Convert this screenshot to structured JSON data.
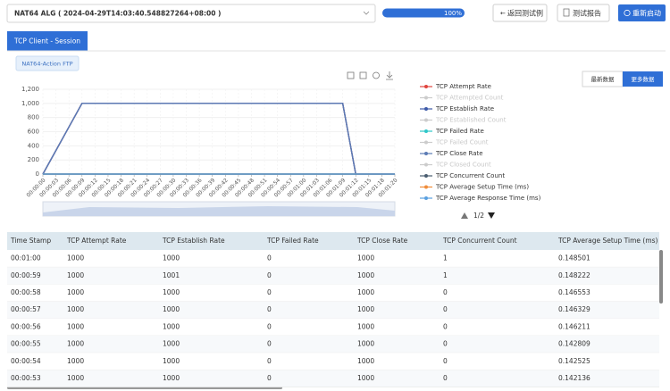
{
  "header": {
    "test_select": "NAT64 ALG ( 2024-04-29T14:03:40.548827264+08:00 )",
    "progress": {
      "value": 100,
      "label": "100%"
    },
    "buttons": [
      "返回测试例",
      "测试报告",
      "重新启动"
    ]
  },
  "tabs": [
    "TCP Client - Session"
  ],
  "filter_tag": "NAT64-Action FTP",
  "view_buttons": [
    "最新数据",
    "更多数据"
  ],
  "chart_data": {
    "type": "line",
    "categories": [
      "00:00:00",
      "00:00:03",
      "00:00:06",
      "00:00:09",
      "00:00:12",
      "00:00:15",
      "00:00:18",
      "00:00:21",
      "00:00:24",
      "00:00:27",
      "00:00:30",
      "00:00:33",
      "00:00:36",
      "00:00:39",
      "00:00:42",
      "00:00:45",
      "00:00:48",
      "00:00:51",
      "00:00:54",
      "00:00:57",
      "00:01:00",
      "00:01:03",
      "00:01:06",
      "00:01:09",
      "00:01:12",
      "00:01:15",
      "00:01:18",
      "00:01:20"
    ],
    "ylim": [
      0,
      1200
    ],
    "yticks": [
      0,
      200,
      400,
      600,
      800,
      {
        "value": 1000,
        "label": "1,000"
      },
      {
        "value": 1200,
        "label": "1,200"
      }
    ],
    "grid": true,
    "series": [
      {
        "name": "TCP Attempt Rate",
        "color": "#e0443e",
        "visible": true,
        "values": [
          0,
          333,
          667,
          1000,
          1000,
          1000,
          1000,
          1000,
          1000,
          1000,
          1000,
          1000,
          1000,
          1000,
          1000,
          1000,
          1000,
          1000,
          1000,
          1000,
          1000,
          1000,
          1000,
          1000,
          0,
          0,
          0,
          0
        ]
      },
      {
        "name": "TCP Attempted Count",
        "color": "#cccccc",
        "visible": false
      },
      {
        "name": "TCP Establish Rate",
        "color": "#3d5aa8",
        "visible": true,
        "values": [
          0,
          333,
          667,
          1000,
          1000,
          1000,
          1000,
          1000,
          1000,
          1000,
          1000,
          1000,
          1000,
          1000,
          1000,
          1000,
          1000,
          1000,
          1000,
          1000,
          1000,
          1000,
          1000,
          1000,
          0,
          0,
          0,
          0
        ]
      },
      {
        "name": "TCP Established Count",
        "color": "#cccccc",
        "visible": false
      },
      {
        "name": "TCP Failed Rate",
        "color": "#2ec7c9",
        "visible": true,
        "values": [
          0,
          0,
          0,
          0,
          0,
          0,
          0,
          0,
          0,
          0,
          0,
          0,
          0,
          0,
          0,
          0,
          0,
          0,
          0,
          0,
          0,
          0,
          0,
          0,
          0,
          0,
          0,
          0
        ]
      },
      {
        "name": "TCP Failed Count",
        "color": "#cccccc",
        "visible": false
      },
      {
        "name": "TCP Close Rate",
        "color": "#5b7bb5",
        "visible": true,
        "values": [
          0,
          333,
          667,
          1000,
          1000,
          1000,
          1000,
          1000,
          1000,
          1000,
          1000,
          1000,
          1000,
          1000,
          1000,
          1000,
          1000,
          1000,
          1000,
          1000,
          1000,
          1000,
          1000,
          1000,
          0,
          0,
          0,
          0
        ]
      },
      {
        "name": "TCP Closed Count",
        "color": "#cccccc",
        "visible": false
      },
      {
        "name": "TCP Concurrent Count",
        "color": "#4a5d70",
        "visible": true,
        "values": [
          0,
          0,
          0,
          0,
          0,
          0,
          0,
          0,
          0,
          0,
          0,
          0,
          0,
          0,
          0,
          0,
          0,
          0,
          0,
          0,
          0,
          0,
          0,
          0,
          0,
          0,
          0,
          0
        ]
      },
      {
        "name": "TCP Average Setup Time (ms)",
        "color": "#f08c3a",
        "visible": true,
        "values": [
          0,
          0.15,
          0.15,
          0.15,
          0.15,
          0.15,
          0.15,
          0.15,
          0.15,
          0.15,
          0.15,
          0.15,
          0.15,
          0.15,
          0.15,
          0.15,
          0.15,
          0.15,
          0.15,
          0.15,
          0.15,
          0.15,
          0.15,
          0.15,
          0,
          0,
          0,
          0
        ]
      },
      {
        "name": "TCP Average Response Time (ms)",
        "color": "#5aa0e0",
        "visible": true,
        "values": [
          0,
          0,
          0,
          0,
          0,
          0,
          0,
          0,
          0,
          0,
          0,
          0,
          0,
          0,
          0,
          0,
          0,
          0,
          0,
          0,
          0,
          0,
          0,
          0,
          0,
          0,
          0,
          0
        ]
      }
    ]
  },
  "legend_page": "1/2",
  "table": {
    "columns": [
      "Time Stamp",
      "TCP Attempt Rate",
      "TCP Establish Rate",
      "TCP Failed Rate",
      "TCP Close Rate",
      "TCP Concurrent Count",
      "TCP Average Setup Time (ms)"
    ],
    "rows": [
      [
        "00:01:00",
        1000,
        1000,
        0,
        1000,
        1,
        0.148501
      ],
      [
        "00:00:59",
        1000,
        1001,
        0,
        1000,
        1,
        0.148222
      ],
      [
        "00:00:58",
        1000,
        1000,
        0,
        1000,
        0,
        0.146553
      ],
      [
        "00:00:57",
        1000,
        1000,
        0,
        1000,
        0,
        0.146329
      ],
      [
        "00:00:56",
        1000,
        1000,
        0,
        1000,
        0,
        0.146211
      ],
      [
        "00:00:55",
        1000,
        1000,
        0,
        1000,
        0,
        0.142809
      ],
      [
        "00:00:54",
        1000,
        1000,
        0,
        1000,
        0,
        0.142525
      ],
      [
        "00:00:53",
        1000,
        1000,
        0,
        1000,
        0,
        0.142136
      ]
    ]
  }
}
